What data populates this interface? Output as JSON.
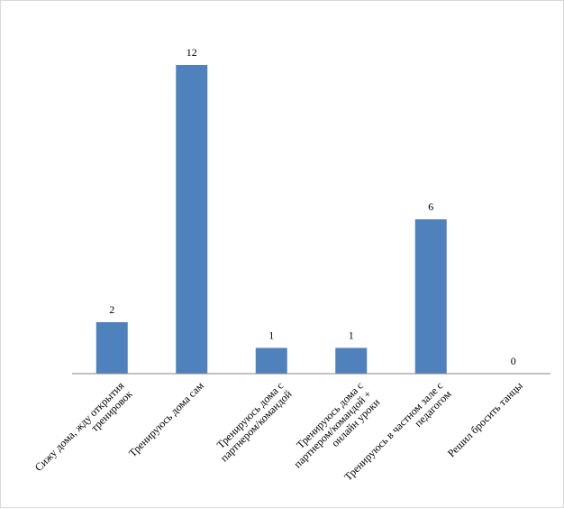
{
  "chart_data": {
    "type": "bar",
    "title": "",
    "xlabel": "",
    "ylabel": "",
    "categories": [
      [
        "Сижу дома, жду открытия",
        "тренировок"
      ],
      [
        "Тренируюсь дома сам"
      ],
      [
        "Тренируюсь дома с",
        "партнером/командой"
      ],
      [
        "Тренируюсь дома с",
        "партнером/командой +",
        "онлайн уроки"
      ],
      [
        "Тренируюсь в частном зале с",
        "педагогом"
      ],
      [
        "Решил бросить танцы"
      ]
    ],
    "values": [
      2,
      12,
      1,
      1,
      6,
      0
    ],
    "ylim": [
      0,
      12
    ],
    "grid": false,
    "legend": "none",
    "bar_color": "#4f81bd",
    "axis_color": "#868686"
  }
}
